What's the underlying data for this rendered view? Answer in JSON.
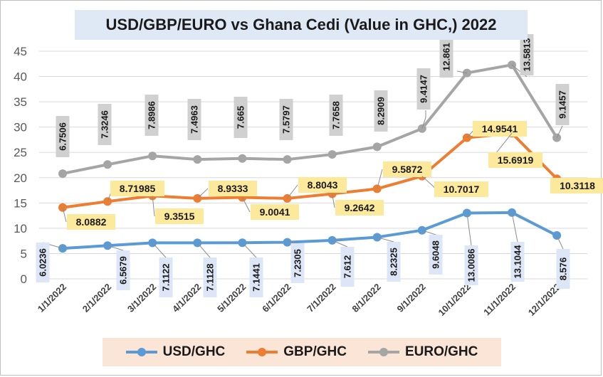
{
  "chart_data": {
    "type": "line",
    "title": "USD/GBP/EURO vs Ghana Cedi (Value in GHC,) 2022",
    "categories": [
      "1/1/2022",
      "2/1/2022",
      "3/1/2022",
      "4/1/2022",
      "5/1/2022",
      "6/1/2022",
      "7/1/2022",
      "8/1/2022",
      "9/1/2022",
      "10/1/2022",
      "11/1/2022",
      "12/1/2022"
    ],
    "ylim": [
      0,
      45
    ],
    "yticks": [
      "0",
      "5",
      "10",
      "15",
      "20",
      "25",
      "30",
      "35",
      "40",
      "45"
    ],
    "grid": true,
    "legend_position": "bottom",
    "series": [
      {
        "name": "USD/GHC",
        "color": "#5b9bd5",
        "values": [
          6.0236,
          6.5679,
          7.1122,
          7.1128,
          7.1441,
          7.2305,
          7.612,
          8.2325,
          9.6048,
          13.0086,
          13.1044,
          8.576
        ],
        "labels": [
          "6.0236",
          "6.5679",
          "7.1122",
          "7.1128",
          "7.1441",
          "7.2305",
          "7.612",
          "8.2325",
          "9.6048",
          "13.0086",
          "13.1044",
          "8.576"
        ]
      },
      {
        "name": "GBP/GHC",
        "color": "#ed7d31",
        "values": [
          14.1,
          15.3,
          16.4,
          15.9,
          16.1,
          15.9,
          16.8,
          17.8,
          20.3,
          27.9,
          28.8,
          19.8
        ],
        "labels": [
          "8.0882",
          "8.71985",
          "9.3515",
          "8.9333",
          "9.0041",
          "8.8043",
          "9.2642",
          "9.5872",
          "10.7017",
          "14.9541",
          "15.6919",
          "10.3118"
        ]
      },
      {
        "name": "EURO/GHC",
        "color": "#a5a5a5",
        "values": [
          20.8,
          22.6,
          24.3,
          23.6,
          23.8,
          23.6,
          24.6,
          26.1,
          29.7,
          40.7,
          42.3,
          27.9
        ],
        "labels": [
          "6.7506",
          "7.3246",
          "7.8986",
          "7.4963",
          "7.665",
          "7.5797",
          "7.7658",
          "8.2909",
          "9.4147",
          "12.861",
          "13.5813",
          "9.1457"
        ]
      }
    ]
  }
}
